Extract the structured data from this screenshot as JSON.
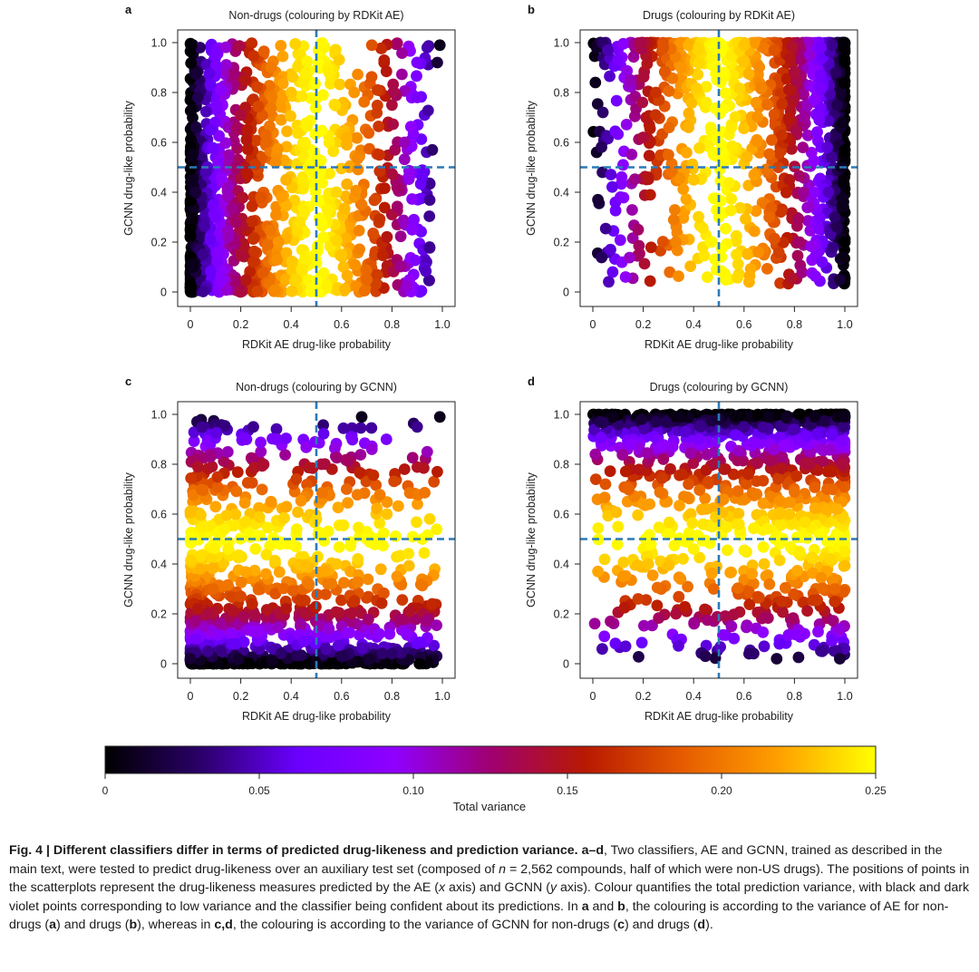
{
  "chart_data": [
    {
      "type": "scatter",
      "panel_letter": "a",
      "title": "Non-drugs (colouring by RDKit AE)",
      "xlabel": "RDKit AE drug-like probability",
      "ylabel": "GCNN drug-like probability",
      "xlim": [
        0,
        1
      ],
      "ylim": [
        0,
        1
      ],
      "x_ticks": [
        "0",
        "0.2",
        "0.4",
        "0.6",
        "0.8",
        "1.0"
      ],
      "y_ticks": [
        "0",
        "0.2",
        "0.4",
        "0.6",
        "0.8",
        "1.0"
      ],
      "threshold_x": 0.5,
      "threshold_y": 0.5,
      "colour_by": "x",
      "points": [
        {
          "x": 0.0,
          "y": 0.02
        },
        {
          "x": 0.01,
          "y": 0.1
        },
        {
          "x": 0.0,
          "y": 0.25
        },
        {
          "x": 0.02,
          "y": 0.4
        },
        {
          "x": 0.01,
          "y": 0.55
        },
        {
          "x": 0.03,
          "y": 0.78
        },
        {
          "x": 0.05,
          "y": 0.15
        },
        {
          "x": 0.06,
          "y": 0.48
        },
        {
          "x": 0.08,
          "y": 0.65
        },
        {
          "x": 0.08,
          "y": 0.83
        },
        {
          "x": 0.1,
          "y": 0.3
        },
        {
          "x": 0.12,
          "y": 0.05
        },
        {
          "x": 0.15,
          "y": 0.22
        },
        {
          "x": 0.18,
          "y": 0.5
        },
        {
          "x": 0.2,
          "y": 0.71
        },
        {
          "x": 0.22,
          "y": 0.85
        },
        {
          "x": 0.25,
          "y": 0.12
        },
        {
          "x": 0.28,
          "y": 0.38
        },
        {
          "x": 0.3,
          "y": 0.6
        },
        {
          "x": 0.32,
          "y": 0.9
        },
        {
          "x": 0.35,
          "y": 0.2
        },
        {
          "x": 0.38,
          "y": 0.45
        },
        {
          "x": 0.4,
          "y": 0.8
        },
        {
          "x": 0.42,
          "y": 0.05
        },
        {
          "x": 0.45,
          "y": 0.33
        },
        {
          "x": 0.46,
          "y": 0.67
        },
        {
          "x": 0.48,
          "y": 0.52
        },
        {
          "x": 0.52,
          "y": 0.28
        },
        {
          "x": 0.55,
          "y": 0.88
        },
        {
          "x": 0.58,
          "y": 0.4
        },
        {
          "x": 0.6,
          "y": 0.15
        },
        {
          "x": 0.62,
          "y": 0.62
        },
        {
          "x": 0.65,
          "y": 0.8
        },
        {
          "x": 0.68,
          "y": 0.35
        },
        {
          "x": 0.7,
          "y": 0.05
        },
        {
          "x": 0.72,
          "y": 0.99
        },
        {
          "x": 0.75,
          "y": 0.55
        },
        {
          "x": 0.78,
          "y": 0.22
        },
        {
          "x": 0.8,
          "y": 0.75
        },
        {
          "x": 0.82,
          "y": 0.42
        },
        {
          "x": 0.85,
          "y": 0.6
        },
        {
          "x": 0.88,
          "y": 0.25
        },
        {
          "x": 0.9,
          "y": 0.78
        },
        {
          "x": 0.92,
          "y": 0.46
        },
        {
          "x": 0.94,
          "y": 0.98
        },
        {
          "x": 0.96,
          "y": 0.57
        },
        {
          "x": 0.98,
          "y": 0.92
        },
        {
          "x": 0.99,
          "y": 0.99
        }
      ]
    },
    {
      "type": "scatter",
      "panel_letter": "b",
      "title": "Drugs (colouring by RDKit AE)",
      "xlabel": "RDKit AE drug-like probability",
      "ylabel": "GCNN drug-like probability",
      "xlim": [
        0,
        1
      ],
      "ylim": [
        0,
        1
      ],
      "x_ticks": [
        "0",
        "0.2",
        "0.4",
        "0.6",
        "0.8",
        "1.0"
      ],
      "y_ticks": [
        "0",
        "0.2",
        "0.4",
        "0.6",
        "0.8",
        "1.0"
      ],
      "threshold_x": 0.5,
      "threshold_y": 0.5,
      "colour_by": "x",
      "points": [
        {
          "x": 0.01,
          "y": 0.84
        },
        {
          "x": 0.02,
          "y": 0.37
        },
        {
          "x": 0.04,
          "y": 0.72
        },
        {
          "x": 0.06,
          "y": 0.97
        },
        {
          "x": 0.07,
          "y": 0.17
        },
        {
          "x": 0.1,
          "y": 0.93
        },
        {
          "x": 0.12,
          "y": 0.51
        },
        {
          "x": 0.13,
          "y": 0.06
        },
        {
          "x": 0.15,
          "y": 0.85
        },
        {
          "x": 0.18,
          "y": 0.25
        },
        {
          "x": 0.2,
          "y": 0.62
        },
        {
          "x": 0.22,
          "y": 0.46
        },
        {
          "x": 0.25,
          "y": 0.8
        },
        {
          "x": 0.28,
          "y": 0.98
        },
        {
          "x": 0.3,
          "y": 0.55
        },
        {
          "x": 0.33,
          "y": 0.2
        },
        {
          "x": 0.35,
          "y": 0.9
        },
        {
          "x": 0.38,
          "y": 0.66
        },
        {
          "x": 0.4,
          "y": 0.45
        },
        {
          "x": 0.42,
          "y": 0.97
        },
        {
          "x": 0.45,
          "y": 0.76
        },
        {
          "x": 0.48,
          "y": 0.55
        },
        {
          "x": 0.5,
          "y": 0.3
        },
        {
          "x": 0.52,
          "y": 0.88
        },
        {
          "x": 0.55,
          "y": 0.66
        },
        {
          "x": 0.57,
          "y": 0.15
        },
        {
          "x": 0.6,
          "y": 0.99
        },
        {
          "x": 0.62,
          "y": 0.04
        },
        {
          "x": 0.64,
          "y": 0.47
        },
        {
          "x": 0.67,
          "y": 0.82
        },
        {
          "x": 0.7,
          "y": 0.3
        },
        {
          "x": 0.72,
          "y": 0.97
        },
        {
          "x": 0.75,
          "y": 0.63
        },
        {
          "x": 0.78,
          "y": 0.45
        },
        {
          "x": 0.8,
          "y": 0.88
        },
        {
          "x": 0.82,
          "y": 0.2
        },
        {
          "x": 0.84,
          "y": 0.7
        },
        {
          "x": 0.86,
          "y": 0.95
        },
        {
          "x": 0.88,
          "y": 0.4
        },
        {
          "x": 0.9,
          "y": 0.82
        },
        {
          "x": 0.91,
          "y": 0.12
        },
        {
          "x": 0.93,
          "y": 0.58
        },
        {
          "x": 0.95,
          "y": 0.99
        },
        {
          "x": 0.96,
          "y": 0.3
        },
        {
          "x": 0.97,
          "y": 0.75
        },
        {
          "x": 0.98,
          "y": 0.05
        },
        {
          "x": 0.99,
          "y": 0.5
        },
        {
          "x": 1.0,
          "y": 0.92
        },
        {
          "x": 1.0,
          "y": 0.2
        },
        {
          "x": 0.99,
          "y": 0.68
        }
      ]
    },
    {
      "type": "scatter",
      "panel_letter": "c",
      "title": "Non-drugs (colouring by GCNN)",
      "xlabel": "RDKit AE drug-like probability",
      "ylabel": "GCNN drug-like probability",
      "xlim": [
        0,
        1
      ],
      "ylim": [
        0,
        1
      ],
      "x_ticks": [
        "0",
        "0.2",
        "0.4",
        "0.6",
        "0.8",
        "1.0"
      ],
      "y_ticks": [
        "0",
        "0.2",
        "0.4",
        "0.6",
        "0.8",
        "1.0"
      ],
      "threshold_x": 0.5,
      "threshold_y": 0.5,
      "colour_by": "y",
      "points": [
        {
          "x": 0.0,
          "y": 0.02
        },
        {
          "x": 0.02,
          "y": 0.1
        },
        {
          "x": 0.03,
          "y": 0.22
        },
        {
          "x": 0.04,
          "y": 0.38
        },
        {
          "x": 0.05,
          "y": 0.55
        },
        {
          "x": 0.03,
          "y": 0.79
        },
        {
          "x": 0.07,
          "y": 0.05
        },
        {
          "x": 0.09,
          "y": 0.3
        },
        {
          "x": 0.1,
          "y": 0.63
        },
        {
          "x": 0.08,
          "y": 0.83
        },
        {
          "x": 0.12,
          "y": 0.16
        },
        {
          "x": 0.15,
          "y": 0.46
        },
        {
          "x": 0.18,
          "y": 0.08
        },
        {
          "x": 0.2,
          "y": 0.27
        },
        {
          "x": 0.22,
          "y": 0.57
        },
        {
          "x": 0.25,
          "y": 0.95
        },
        {
          "x": 0.27,
          "y": 0.13
        },
        {
          "x": 0.3,
          "y": 0.36
        },
        {
          "x": 0.32,
          "y": 0.65
        },
        {
          "x": 0.34,
          "y": 0.9
        },
        {
          "x": 0.36,
          "y": 0.04
        },
        {
          "x": 0.38,
          "y": 0.22
        },
        {
          "x": 0.4,
          "y": 0.48
        },
        {
          "x": 0.42,
          "y": 0.74
        },
        {
          "x": 0.45,
          "y": 0.09
        },
        {
          "x": 0.47,
          "y": 0.32
        },
        {
          "x": 0.5,
          "y": 0.58
        },
        {
          "x": 0.52,
          "y": 0.8
        },
        {
          "x": 0.55,
          "y": 0.14
        },
        {
          "x": 0.58,
          "y": 0.4
        },
        {
          "x": 0.6,
          "y": 0.03
        },
        {
          "x": 0.62,
          "y": 0.7
        },
        {
          "x": 0.65,
          "y": 0.25
        },
        {
          "x": 0.68,
          "y": 0.99
        },
        {
          "x": 0.7,
          "y": 0.5
        },
        {
          "x": 0.72,
          "y": 0.86
        },
        {
          "x": 0.75,
          "y": 0.12
        },
        {
          "x": 0.78,
          "y": 0.6
        },
        {
          "x": 0.8,
          "y": 0.04
        },
        {
          "x": 0.82,
          "y": 0.35
        },
        {
          "x": 0.85,
          "y": 0.78
        },
        {
          "x": 0.87,
          "y": 0.21
        },
        {
          "x": 0.9,
          "y": 0.95
        },
        {
          "x": 0.92,
          "y": 0.5
        },
        {
          "x": 0.94,
          "y": 0.85
        },
        {
          "x": 0.96,
          "y": 0.24
        },
        {
          "x": 0.98,
          "y": 0.77
        },
        {
          "x": 0.99,
          "y": 0.99
        }
      ]
    },
    {
      "type": "scatter",
      "panel_letter": "d",
      "title": "Drugs (colouring by GCNN)",
      "xlabel": "RDKit AE drug-like probability",
      "ylabel": "GCNN drug-like probability",
      "xlim": [
        0,
        1
      ],
      "ylim": [
        0,
        1
      ],
      "x_ticks": [
        "0",
        "0.2",
        "0.4",
        "0.6",
        "0.8",
        "1.0"
      ],
      "y_ticks": [
        "0",
        "0.2",
        "0.4",
        "0.6",
        "0.8",
        "1.0"
      ],
      "threshold_x": 0.5,
      "threshold_y": 0.5,
      "colour_by": "y",
      "points": [
        {
          "x": 0.01,
          "y": 0.84
        },
        {
          "x": 0.02,
          "y": 0.37
        },
        {
          "x": 0.03,
          "y": 0.97
        },
        {
          "x": 0.05,
          "y": 0.72
        },
        {
          "x": 0.07,
          "y": 0.17
        },
        {
          "x": 0.08,
          "y": 0.99
        },
        {
          "x": 0.1,
          "y": 0.55
        },
        {
          "x": 0.12,
          "y": 0.35
        },
        {
          "x": 0.13,
          "y": 0.07
        },
        {
          "x": 0.15,
          "y": 0.88
        },
        {
          "x": 0.18,
          "y": 0.26
        },
        {
          "x": 0.2,
          "y": 0.64
        },
        {
          "x": 0.22,
          "y": 0.4
        },
        {
          "x": 0.25,
          "y": 0.97
        },
        {
          "x": 0.28,
          "y": 0.82
        },
        {
          "x": 0.3,
          "y": 0.52
        },
        {
          "x": 0.33,
          "y": 0.2
        },
        {
          "x": 0.35,
          "y": 0.99
        },
        {
          "x": 0.38,
          "y": 0.72
        },
        {
          "x": 0.4,
          "y": 0.46
        },
        {
          "x": 0.42,
          "y": 0.9
        },
        {
          "x": 0.45,
          "y": 0.62
        },
        {
          "x": 0.48,
          "y": 0.3
        },
        {
          "x": 0.5,
          "y": 0.98
        },
        {
          "x": 0.52,
          "y": 0.78
        },
        {
          "x": 0.55,
          "y": 0.15
        },
        {
          "x": 0.58,
          "y": 0.56
        },
        {
          "x": 0.6,
          "y": 0.95
        },
        {
          "x": 0.62,
          "y": 0.04
        },
        {
          "x": 0.65,
          "y": 0.68
        },
        {
          "x": 0.68,
          "y": 0.4
        },
        {
          "x": 0.7,
          "y": 0.99
        },
        {
          "x": 0.72,
          "y": 0.86
        },
        {
          "x": 0.75,
          "y": 0.25
        },
        {
          "x": 0.78,
          "y": 0.6
        },
        {
          "x": 0.8,
          "y": 0.94
        },
        {
          "x": 0.82,
          "y": 0.45
        },
        {
          "x": 0.84,
          "y": 0.12
        },
        {
          "x": 0.86,
          "y": 0.8
        },
        {
          "x": 0.88,
          "y": 0.99
        },
        {
          "x": 0.9,
          "y": 0.52
        },
        {
          "x": 0.91,
          "y": 0.05
        },
        {
          "x": 0.93,
          "y": 0.7
        },
        {
          "x": 0.95,
          "y": 0.92
        },
        {
          "x": 0.96,
          "y": 0.3
        },
        {
          "x": 0.97,
          "y": 0.62
        },
        {
          "x": 0.98,
          "y": 0.02
        },
        {
          "x": 1.0,
          "y": 0.99
        },
        {
          "x": 1.0,
          "y": 0.45
        },
        {
          "x": 0.99,
          "y": 0.8
        }
      ]
    }
  ],
  "colorbar": {
    "label": "Total variance",
    "range": [
      0,
      0.25
    ],
    "ticks": [
      "0",
      "0.05",
      "0.10",
      "0.15",
      "0.20",
      "0.25"
    ],
    "tick_values": [
      0,
      0.05,
      0.1,
      0.15,
      0.2,
      0.25
    ],
    "stops": [
      "#000000",
      "#2b006a",
      "#6a00ff",
      "#8f00ff",
      "#a00070",
      "#b81a00",
      "#e65c00",
      "#ffa000",
      "#ffff00"
    ]
  },
  "colors": {
    "threshold_line": "#2a7ab8",
    "axis": "#222222"
  },
  "caption": {
    "fig_label": "Fig. 4 | Different classifiers differ in terms of predicted drug-likeness and prediction variance.",
    "panels_ref": "a",
    "en_dash": "–",
    "panels_ref_end": "d",
    "comma1": ", Two classifiers, AE and GCNN, trained as described in the main text, were tested to predict drug-likeness over an auxiliary test set (composed of ",
    "n_italic": "n",
    "n_rest": " = 2,562 compounds, half of which were non-US drugs). The positions of points in the scatterplots represent the drug-likeness measures predicted by the AE (",
    "x_italic": "x",
    "mid1": " axis) and GCNN (",
    "y_italic": "y",
    "mid2": " axis). Colour quantifies the total prediction variance, with black and dark violet points corresponding to low variance and the classifier being confident about its predictions. In ",
    "ref_a": "a",
    "and1": " and ",
    "ref_b": "b",
    "mid3": ", the colouring is according to the variance of AE for non-drugs (",
    "ref_a2": "a",
    "mid4": ") and drugs (",
    "ref_b2": "b",
    "mid5": "), whereas in ",
    "ref_cd": "c,d",
    "mid6": ", the colouring is according to the variance of GCNN for non-drugs (",
    "ref_c": "c",
    "mid7": ") and drugs (",
    "ref_d": "d",
    "end": ")."
  }
}
